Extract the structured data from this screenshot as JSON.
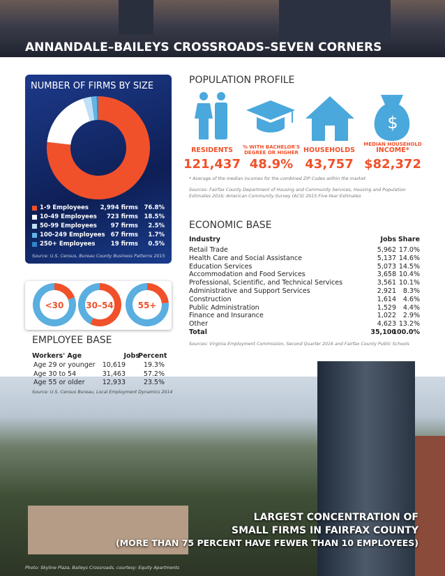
{
  "title": "ANNANDALE–BAILEYS CROSSROADS–SEVEN CORNERS",
  "firms": {
    "title": "NUMBER OF FIRMS BY SIZE",
    "rows": [
      {
        "label": "1-9 Employees",
        "firms": "2,994 firms",
        "share": 76.8,
        "share_label": "76.8%",
        "color": "#f0512a"
      },
      {
        "label": "10-49 Employees",
        "firms": "723 firms",
        "share": 18.5,
        "share_label": "18.5%",
        "color": "#ffffff"
      },
      {
        "label": "50-99 Employees",
        "firms": "97 firms",
        "share": 2.5,
        "share_label": "2.5%",
        "color": "#bfe0f6"
      },
      {
        "label": "100-249 Employees",
        "firms": "67 firms",
        "share": 1.7,
        "share_label": "1.7%",
        "color": "#62b3e6"
      },
      {
        "label": "250+ Employees",
        "firms": "19 firms",
        "share": 0.5,
        "share_label": "0.5%",
        "color": "#2f86c8"
      }
    ],
    "source": "Source: U.S. Census, Bureau County Business Patterns 2015"
  },
  "employee": {
    "title": "EMPLOYEE BASE",
    "donut_labels": [
      "<30",
      "30–54",
      "55+"
    ],
    "header": [
      "Workers' Age",
      "Jobs",
      "Percent"
    ],
    "rows": [
      {
        "age": "Age 29 or younger",
        "jobs": "10,619",
        "percent": 19.3,
        "percent_label": "19.3%"
      },
      {
        "age": "Age 30 to 54",
        "jobs": "31,463",
        "percent": 57.2,
        "percent_label": "57.2%"
      },
      {
        "age": "Age 55 or older",
        "jobs": "12,933",
        "percent": 23.5,
        "percent_label": "23.5%"
      }
    ],
    "source": "Source: U.S. Census Bureau, Local Employment Dynamics 2014"
  },
  "population": {
    "title": "POPULATION PROFILE",
    "icon_symbol": "$",
    "items": [
      {
        "label": "RESIDENTS",
        "value": "121,437"
      },
      {
        "label": "% WITH BACHELOR'S DEGREE OR HIGHER",
        "value": "48.9%"
      },
      {
        "label": "HOUSEHOLDS",
        "value": "43,757"
      },
      {
        "label_small": "MEDIAN HOUSEHOLD",
        "label": "INCOME*",
        "value": "$82,372"
      }
    ],
    "note": "* Average of the median incomes for the combined ZIP Codes within the market",
    "source": "Sources: Fairfax County Department of Housing and Community Services, Housing and Population Estimates 2016; American Community Survey (ACS) 2015 Five-Year Estimates"
  },
  "economic": {
    "title": "ECONOMIC BASE",
    "header": [
      "Industry",
      "Jobs",
      "Share"
    ],
    "rows": [
      [
        "Retail Trade",
        "5,962",
        "17.0%"
      ],
      [
        "Health Care and Social Assistance",
        "5,137",
        "14.6%"
      ],
      [
        "Education Services",
        "5,073",
        "14.5%"
      ],
      [
        "Accommodation and Food Services",
        "3,658",
        "10.4%"
      ],
      [
        "Professional, Scientific, and Technical Services",
        "3,561",
        "10.1%"
      ],
      [
        "Administrative and Support Services",
        "2,921",
        "8.3%"
      ],
      [
        "Construction",
        "1,614",
        "4.6%"
      ],
      [
        "Public Administration",
        "1,529",
        "4.4%"
      ],
      [
        "Finance and Insurance",
        "1,022",
        "2.9%"
      ],
      [
        "Other",
        "4,623",
        "13.2%"
      ],
      [
        "Total",
        "35,100",
        "100.0%"
      ]
    ],
    "source": "Sources: Virginia Employment Commission, Second Quarter 2016 and Fairfax County Public Schools"
  },
  "callout": [
    "LARGEST CONCENTRATION OF",
    "SMALL FIRMS IN FAIRFAX COUNTY",
    "(MORE THAN 75 PERCENT HAVE FEWER THAN 10 EMPLOYEES)"
  ],
  "caption": "Photo: Skyline Plaza, Baileys Crossroads, courtesy: Equity Apartments"
}
